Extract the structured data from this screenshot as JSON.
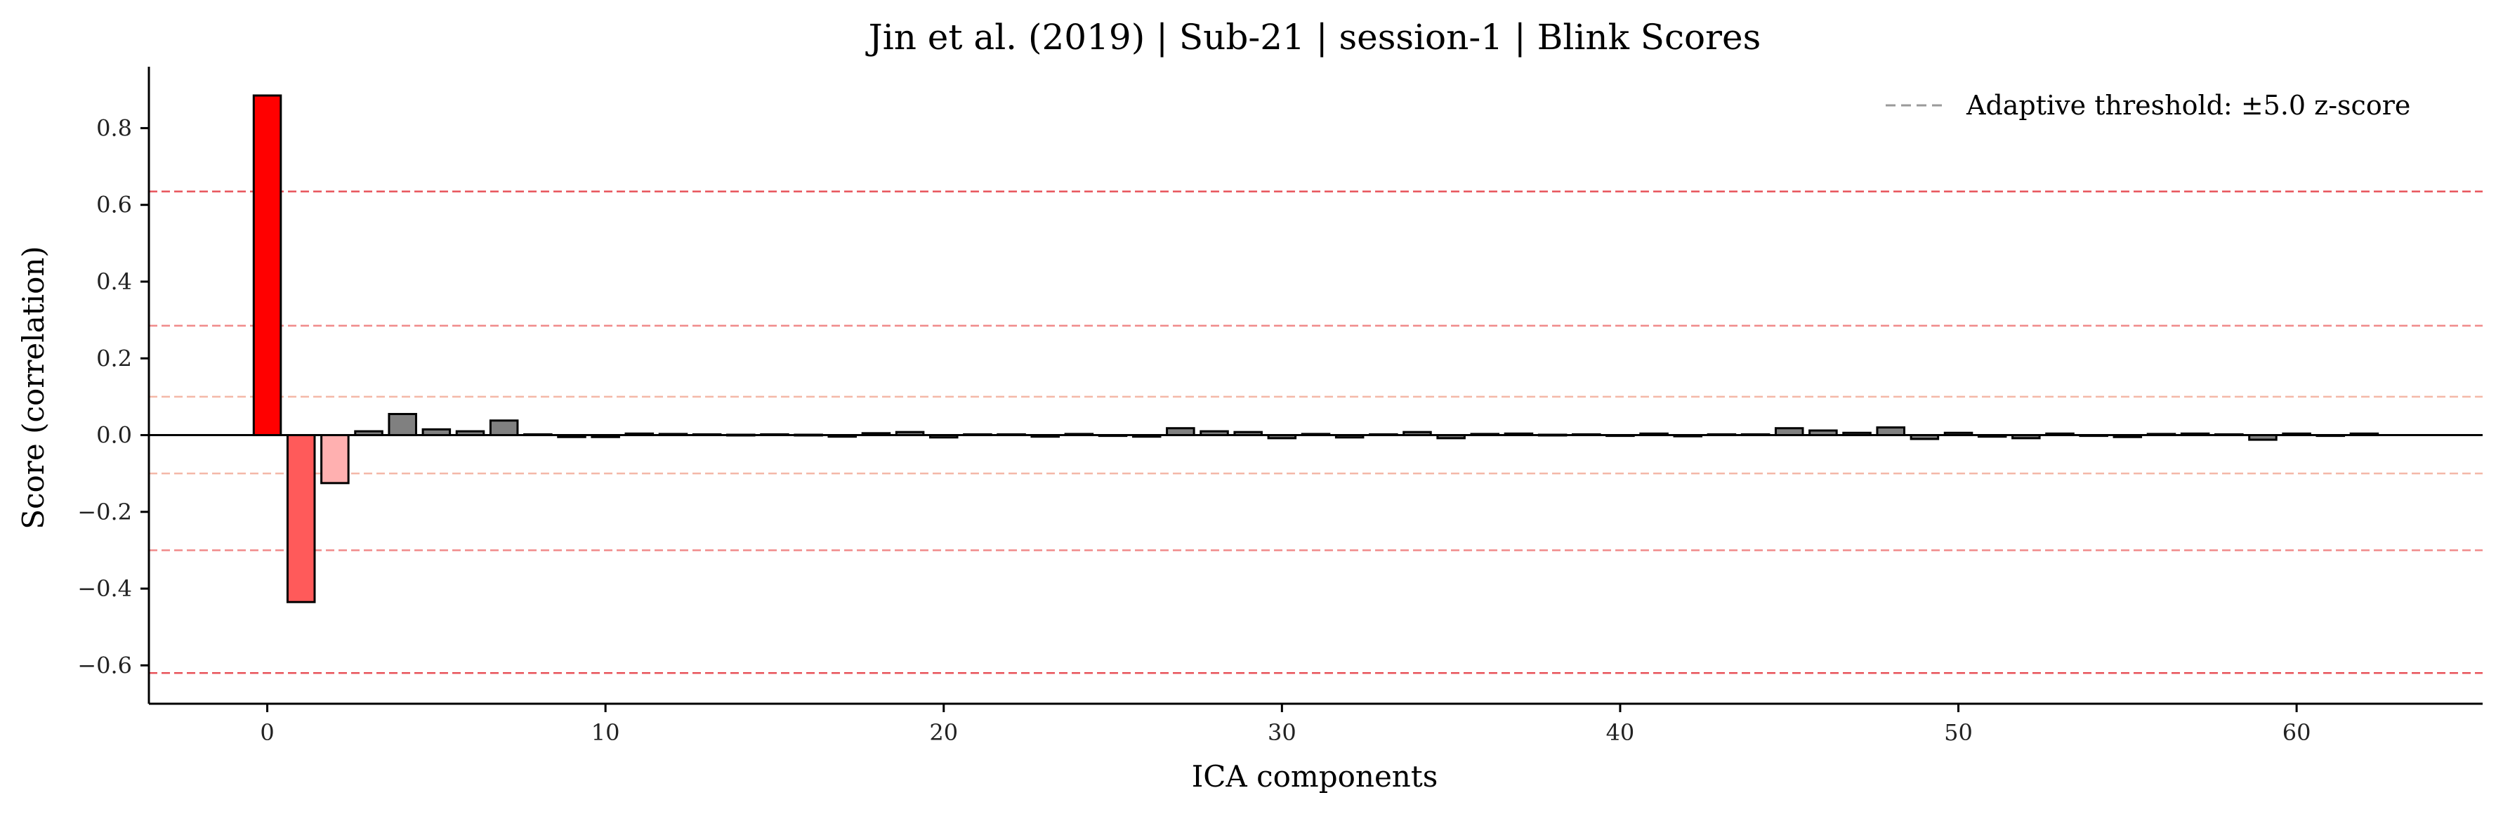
{
  "chart_data": {
    "type": "bar",
    "title": "Jin et al. (2019) | Sub-21 | session-1 | Blink Scores",
    "xlabel": "ICA components",
    "ylabel": "Score (correlation)",
    "xlim": [
      -3.5,
      65.5
    ],
    "ylim": [
      -0.7,
      0.96
    ],
    "xticks": [
      0,
      10,
      20,
      30,
      40,
      50,
      60
    ],
    "yticks": [
      -0.6,
      -0.4,
      -0.2,
      0.0,
      0.2,
      0.4,
      0.6,
      0.8
    ],
    "grid": false,
    "legend": {
      "placement": "top-right",
      "entries": [
        "Adaptive threshold: ±5.0 z-score"
      ]
    },
    "thresholds": [
      {
        "value": 0.635,
        "color": "#e8535a"
      },
      {
        "value": 0.285,
        "color": "#f08a8a"
      },
      {
        "value": 0.1,
        "color": "#f4b8a8"
      },
      {
        "value": -0.1,
        "color": "#f4b8a8"
      },
      {
        "value": -0.3,
        "color": "#f08a8a"
      },
      {
        "value": -0.62,
        "color": "#e8535a"
      }
    ],
    "colors": {
      "strong": "#ff0000",
      "medium": "#ff5a5a",
      "weak": "#ffb0b0",
      "normal": "#808080",
      "edge": "#000000"
    },
    "highlight": {
      "0": "strong",
      "1": "medium",
      "2": "weak"
    },
    "x": [
      0,
      1,
      2,
      3,
      4,
      5,
      6,
      7,
      8,
      9,
      10,
      11,
      12,
      13,
      14,
      15,
      16,
      17,
      18,
      19,
      20,
      21,
      22,
      23,
      24,
      25,
      26,
      27,
      28,
      29,
      30,
      31,
      32,
      33,
      34,
      35,
      36,
      37,
      38,
      39,
      40,
      41,
      42,
      43,
      44,
      45,
      46,
      47,
      48,
      49,
      50,
      51,
      52,
      53,
      54,
      55,
      56,
      57,
      58,
      59,
      60,
      61,
      62
    ],
    "values": [
      0.885,
      -0.435,
      -0.125,
      0.01,
      0.055,
      0.015,
      0.01,
      0.038,
      0.002,
      -0.005,
      -0.005,
      0.004,
      0.003,
      0.002,
      0.001,
      0.002,
      0.001,
      -0.004,
      0.005,
      0.008,
      -0.006,
      0.002,
      0.002,
      -0.004,
      0.003,
      -0.002,
      -0.004,
      0.018,
      0.01,
      0.008,
      -0.008,
      0.003,
      -0.006,
      0.002,
      0.008,
      -0.008,
      0.003,
      0.004,
      0.001,
      0.002,
      -0.002,
      0.004,
      -0.003,
      0.002,
      0.002,
      0.018,
      0.012,
      0.006,
      0.02,
      -0.01,
      0.006,
      -0.004,
      -0.008,
      0.004,
      -0.002,
      -0.005,
      0.003,
      0.004,
      0.002,
      -0.012,
      0.004,
      -0.002,
      0.004
    ]
  }
}
